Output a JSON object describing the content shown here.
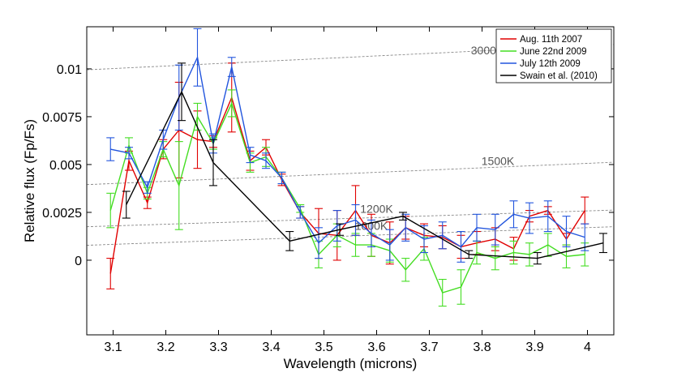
{
  "chart_data": {
    "type": "line",
    "xlabel": "Wavelength (microns)",
    "ylabel": "Relative flux (Fp/Fs)",
    "xlim": [
      3.05,
      4.05
    ],
    "ylim": [
      -0.0039,
      0.0122
    ],
    "xticks": [
      3.1,
      3.2,
      3.3,
      3.4,
      3.5,
      3.6,
      3.7,
      3.8,
      3.9,
      4.0
    ],
    "xtick_labels": [
      "3.1",
      "3.2",
      "3.3",
      "3.4",
      "3.5",
      "3.6",
      "3.7",
      "3.8",
      "3.9",
      "4"
    ],
    "yticks": [
      0,
      0.0025,
      0.005,
      0.0075,
      0.01
    ],
    "ytick_labels": [
      "0",
      "0.0025",
      "0.005",
      "0.0075",
      "0.01"
    ],
    "legend_position": "top-right",
    "reference_curves": [
      {
        "label": "3000K",
        "x": [
          3.05,
          4.05
        ],
        "y": [
          0.00995,
          0.01127
        ],
        "label_x": 3.81,
        "label_y": 0.01075
      },
      {
        "label": "1500K",
        "x": [
          3.05,
          4.05
        ],
        "y": [
          0.00395,
          0.00512
        ],
        "label_x": 3.83,
        "label_y": 0.00498
      },
      {
        "label": "1200K",
        "x": [
          3.05,
          4.05
        ],
        "y": [
          0.00175,
          0.00262
        ],
        "label_x": 3.6,
        "label_y": 0.00247
      },
      {
        "label": "1000K",
        "x": [
          3.05,
          4.05
        ],
        "y": [
          0.00078,
          0.00175
        ],
        "label_x": 3.59,
        "label_y": 0.00158
      }
    ],
    "series": [
      {
        "name": "Aug. 11th 2007",
        "color": "#e00000",
        "x": [
          3.095,
          3.13,
          3.165,
          3.195,
          3.225,
          3.26,
          3.29,
          3.325,
          3.36,
          3.39,
          3.42,
          3.455,
          3.49,
          3.525,
          3.56,
          3.59,
          3.625,
          3.655,
          3.69,
          3.725,
          3.76,
          3.79,
          3.825,
          3.86,
          3.89,
          3.925,
          3.96,
          3.995
        ],
        "y": [
          -0.0007,
          0.0052,
          0.003,
          0.0058,
          0.0068,
          0.0063,
          0.0062,
          0.0085,
          0.0052,
          0.0059,
          0.0042,
          0.0025,
          0.0014,
          0.0013,
          0.0026,
          0.0013,
          0.0009,
          0.0017,
          0.0013,
          0.0012,
          0.0007,
          0.0009,
          0.0011,
          0.0006,
          0.0023,
          0.0026,
          0.0011,
          0.0026
        ],
        "err": [
          0.0008,
          0.0005,
          0.0003,
          0.0005,
          0.0025,
          0.0015,
          0.0003,
          0.0018,
          0.0005,
          0.0004,
          0.0003,
          0.0003,
          0.0013,
          0.0013,
          0.0013,
          0.0011,
          0.0011,
          0.0006,
          0.0006,
          0.0006,
          0.0006,
          0.0006,
          0.0006,
          0.0006,
          0.0003,
          0.0002,
          0.0003,
          0.0007
        ]
      },
      {
        "name": "June 22nd 2009",
        "color": "#44dd22",
        "x": [
          3.095,
          3.13,
          3.165,
          3.195,
          3.225,
          3.26,
          3.29,
          3.325,
          3.36,
          3.39,
          3.42,
          3.455,
          3.49,
          3.525,
          3.56,
          3.59,
          3.625,
          3.655,
          3.69,
          3.725,
          3.76,
          3.79,
          3.825,
          3.86,
          3.89,
          3.925,
          3.96,
          3.995
        ],
        "y": [
          0.0026,
          0.006,
          0.0035,
          0.0058,
          0.0039,
          0.0075,
          0.0061,
          0.0082,
          0.0051,
          0.0054,
          0.0043,
          0.0027,
          0.0003,
          0.0013,
          0.0008,
          0.0008,
          0.0005,
          -0.0005,
          0.0006,
          -0.0017,
          -0.0014,
          0.0004,
          0.0001,
          0.0004,
          0.0003,
          0.0008,
          0.0002,
          0.0003
        ],
        "err": [
          0.0009,
          0.0004,
          0.0003,
          0.0004,
          0.0023,
          0.0007,
          0.0003,
          0.0007,
          0.0005,
          0.0005,
          0.0003,
          0.0002,
          0.0007,
          0.0006,
          0.0006,
          0.0006,
          0.0006,
          0.0006,
          0.0006,
          0.0007,
          0.0009,
          0.0006,
          0.0006,
          0.0006,
          0.0006,
          0.0006,
          0.0006,
          0.0006
        ]
      },
      {
        "name": "July 12th 2009",
        "color": "#2255dd",
        "x": [
          3.095,
          3.13,
          3.165,
          3.195,
          3.225,
          3.26,
          3.29,
          3.325,
          3.36,
          3.39,
          3.42,
          3.455,
          3.49,
          3.525,
          3.56,
          3.59,
          3.625,
          3.655,
          3.69,
          3.725,
          3.76,
          3.79,
          3.825,
          3.86,
          3.89,
          3.925,
          3.96,
          3.995
        ],
        "y": [
          0.0058,
          0.0056,
          0.0038,
          0.0063,
          0.0085,
          0.0106,
          0.0061,
          0.0101,
          0.0055,
          0.0052,
          0.0043,
          0.0025,
          0.0009,
          0.0018,
          0.0021,
          0.0014,
          0.0008,
          0.0017,
          0.0011,
          0.0013,
          0.0007,
          0.0017,
          0.0016,
          0.0024,
          0.0022,
          0.0023,
          0.0015,
          0.0012
        ],
        "err": [
          0.0006,
          0.0003,
          0.0003,
          0.0005,
          0.0017,
          0.0015,
          0.0005,
          0.0005,
          0.0004,
          0.0004,
          0.0003,
          0.0003,
          0.0008,
          0.0008,
          0.0008,
          0.0007,
          0.0008,
          0.0007,
          0.0007,
          0.0007,
          0.0008,
          0.0007,
          0.0008,
          0.0007,
          0.0008,
          0.0008,
          0.0008,
          0.0007
        ]
      },
      {
        "name": "Swain et al. (2010)",
        "color": "#000000",
        "x": [
          3.125,
          3.23,
          3.29,
          3.435,
          3.53,
          3.65,
          3.775,
          3.905,
          4.03
        ],
        "y": [
          0.0029,
          0.0088,
          0.0051,
          0.001,
          0.0016,
          0.0023,
          0.0003,
          0.0001,
          0.0009
        ],
        "err": [
          0.0007,
          0.0015,
          0.0012,
          0.0005,
          0.0003,
          0.0002,
          0.0002,
          0.0003,
          0.0005
        ]
      }
    ]
  }
}
